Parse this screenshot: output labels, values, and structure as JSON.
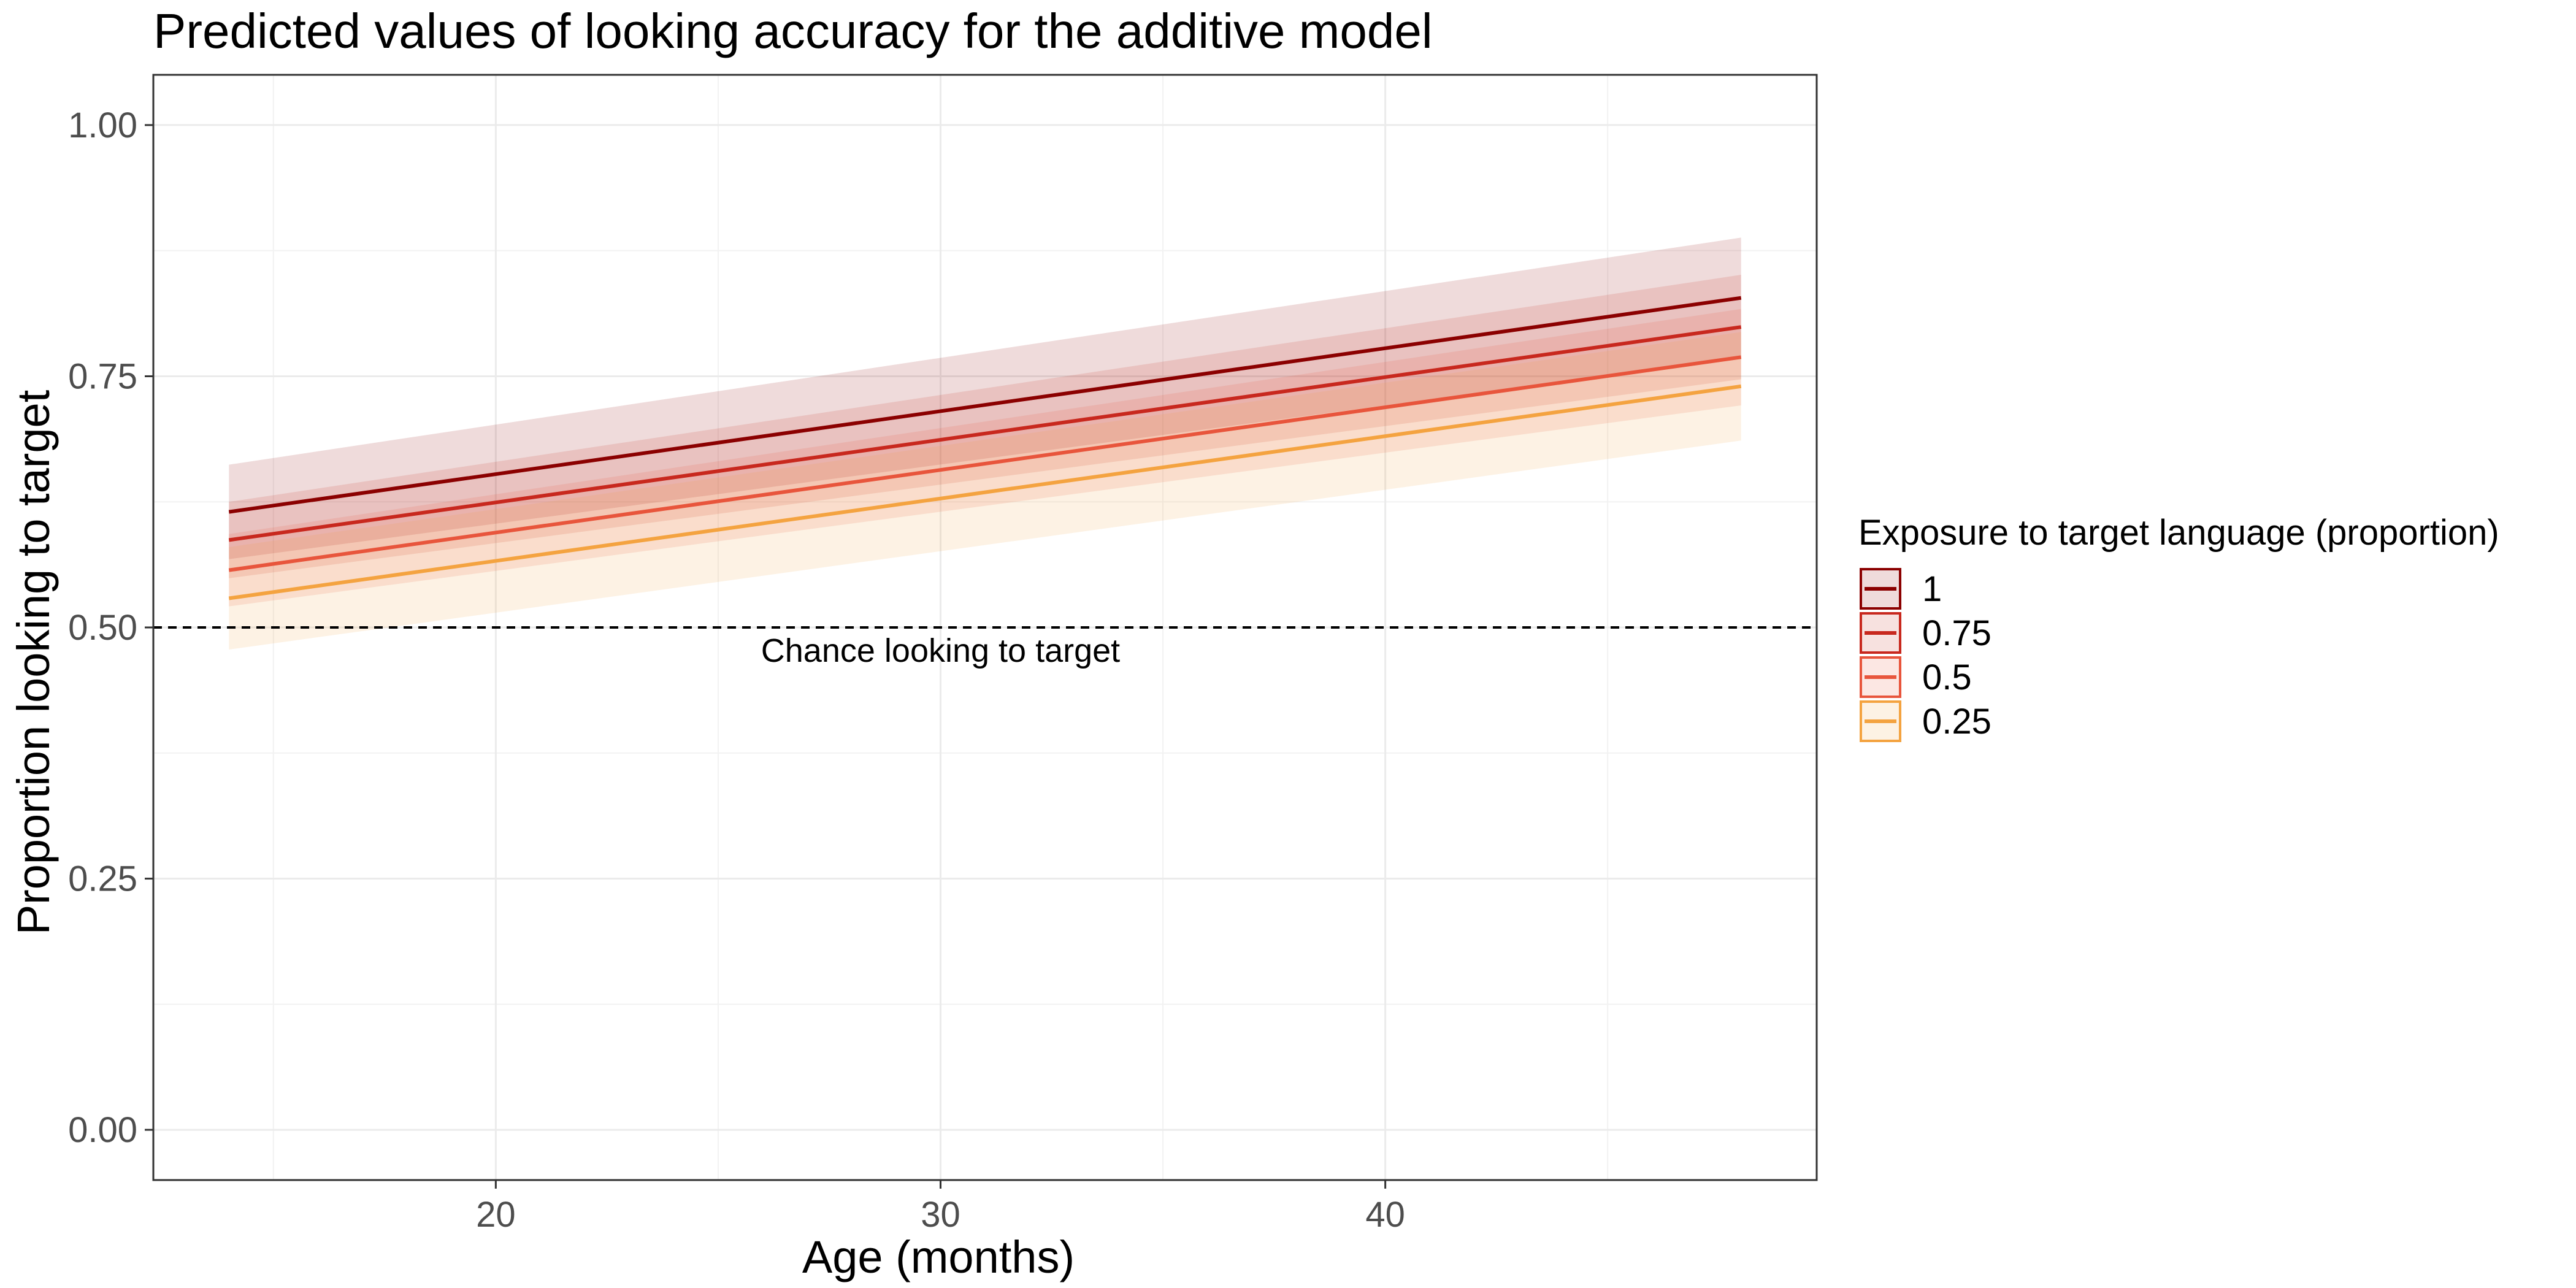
{
  "chart_data": {
    "type": "line",
    "title": "Predicted values of looking accuracy for the additive model",
    "xlabel": "Age (months)",
    "ylabel": "Proportion looking to target",
    "xlim": [
      12.3,
      49.7
    ],
    "ylim": [
      -0.05,
      1.05
    ],
    "x_ticks": [
      20,
      30,
      40
    ],
    "x_tick_labels": [
      "20",
      "30",
      "40"
    ],
    "y_ticks": [
      0,
      0.25,
      0.5,
      0.75,
      1
    ],
    "y_tick_labels": [
      "0.00",
      "0.25",
      "0.50",
      "0.75",
      "1.00"
    ],
    "grid": true,
    "legend": {
      "title": "Exposure to target language (proportion)",
      "placement": "right"
    },
    "x": [
      14,
      48
    ],
    "series": [
      {
        "name": "1",
        "color": "#8b0000",
        "values": [
          0.615,
          0.828
        ],
        "lower": [
          0.568,
          0.768
        ],
        "upper": [
          0.662,
          0.888
        ]
      },
      {
        "name": "0.75",
        "color": "#c8281e",
        "values": [
          0.587,
          0.799
        ],
        "lower": [
          0.549,
          0.747
        ],
        "upper": [
          0.625,
          0.851
        ]
      },
      {
        "name": "0.5",
        "color": "#e8553c",
        "values": [
          0.557,
          0.769
        ],
        "lower": [
          0.521,
          0.721
        ],
        "upper": [
          0.593,
          0.817
        ]
      },
      {
        "name": "0.25",
        "color": "#f4a340",
        "values": [
          0.529,
          0.74
        ],
        "lower": [
          0.478,
          0.686
        ],
        "upper": [
          0.58,
          0.794
        ]
      }
    ],
    "reference_line": {
      "y": 0.5,
      "style": "dashed",
      "label": "Chance looking to target",
      "label_x": 30
    }
  }
}
